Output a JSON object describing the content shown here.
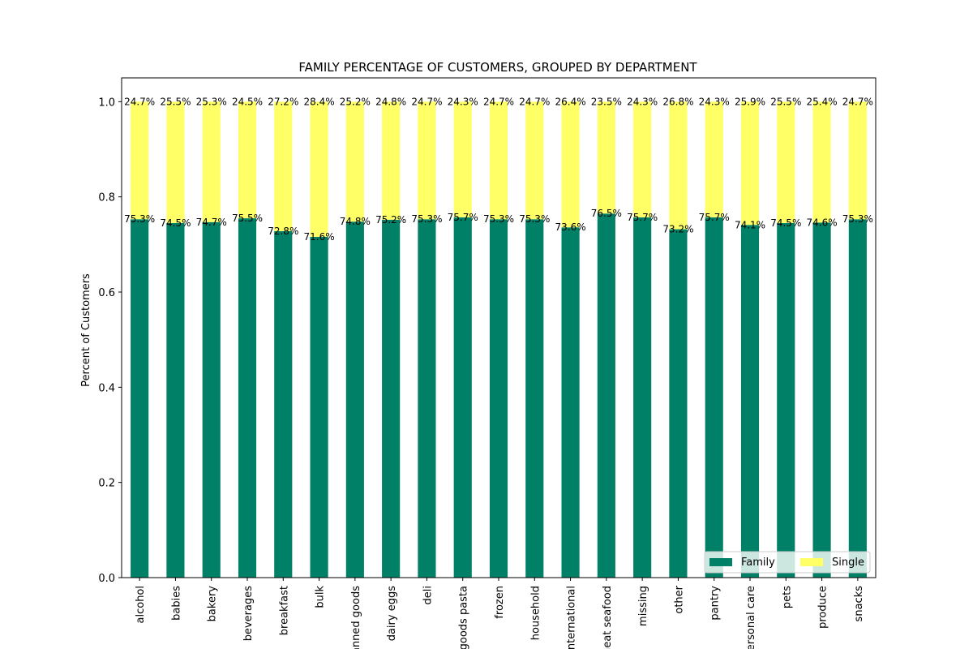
{
  "chart_data": {
    "type": "bar",
    "stacked": true,
    "title": "FAMILY PERCENTAGE OF CUSTOMERS, GROUPED BY DEPARTMENT",
    "xlabel": "",
    "ylabel": "Percent of Customers",
    "ylim": [
      0,
      1.05
    ],
    "yticks": [
      "0.0",
      "0.2",
      "0.4",
      "0.6",
      "0.8",
      "1.0"
    ],
    "grid": false,
    "legend_position": "bottom-right",
    "categories": [
      "alcohol",
      "babies",
      "bakery",
      "beverages",
      "breakfast",
      "bulk",
      "canned goods",
      "dairy eggs",
      "deli",
      "dry goods pasta",
      "frozen",
      "household",
      "international",
      "meat seafood",
      "missing",
      "other",
      "pantry",
      "personal care",
      "pets",
      "produce",
      "snacks"
    ],
    "series": [
      {
        "name": "Family",
        "color": "#008066",
        "values": [
          0.753,
          0.745,
          0.747,
          0.755,
          0.728,
          0.716,
          0.748,
          0.752,
          0.753,
          0.757,
          0.753,
          0.753,
          0.736,
          0.765,
          0.757,
          0.732,
          0.757,
          0.741,
          0.745,
          0.746,
          0.753
        ],
        "labels": [
          "75.3%",
          "74.5%",
          "74.7%",
          "75.5%",
          "72.8%",
          "71.6%",
          "74.8%",
          "75.2%",
          "75.3%",
          "75.7%",
          "75.3%",
          "75.3%",
          "73.6%",
          "76.5%",
          "75.7%",
          "73.2%",
          "75.7%",
          "74.1%",
          "74.5%",
          "74.6%",
          "75.3%"
        ]
      },
      {
        "name": "Single",
        "color": "#ffff66",
        "values": [
          0.247,
          0.255,
          0.253,
          0.245,
          0.272,
          0.284,
          0.252,
          0.248,
          0.247,
          0.243,
          0.247,
          0.247,
          0.264,
          0.235,
          0.243,
          0.268,
          0.243,
          0.259,
          0.255,
          0.254,
          0.247
        ],
        "labels": [
          "24.7%",
          "25.5%",
          "25.3%",
          "24.5%",
          "27.2%",
          "28.4%",
          "25.2%",
          "24.8%",
          "24.7%",
          "24.3%",
          "24.7%",
          "24.7%",
          "26.4%",
          "23.5%",
          "24.3%",
          "26.8%",
          "24.3%",
          "25.9%",
          "25.5%",
          "25.4%",
          "24.7%"
        ]
      }
    ]
  }
}
